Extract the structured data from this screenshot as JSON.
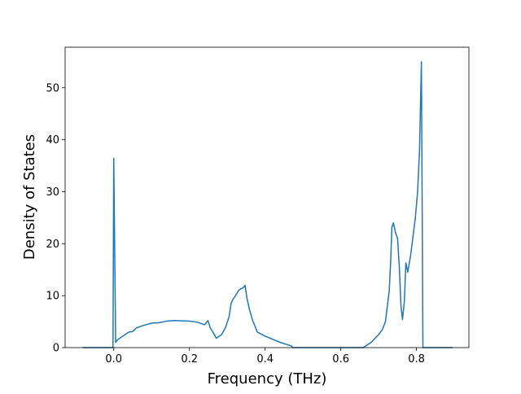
{
  "chart_data": {
    "type": "line",
    "xlabel": "Frequency (THz)",
    "ylabel": "Density of States",
    "x": [
      -0.082,
      -0.002,
      0.0,
      0.005,
      0.01,
      0.02,
      0.03,
      0.04,
      0.05,
      0.06,
      0.08,
      0.1,
      0.12,
      0.14,
      0.16,
      0.2,
      0.22,
      0.24,
      0.249,
      0.255,
      0.262,
      0.271,
      0.285,
      0.295,
      0.305,
      0.31,
      0.315,
      0.322,
      0.33,
      0.335,
      0.342,
      0.347,
      0.352,
      0.358,
      0.368,
      0.374,
      0.379,
      0.4,
      0.44,
      0.47,
      0.472,
      0.659,
      0.68,
      0.7,
      0.71,
      0.718,
      0.723,
      0.728,
      0.732,
      0.735,
      0.739,
      0.745,
      0.75,
      0.755,
      0.759,
      0.763,
      0.768,
      0.772,
      0.777,
      0.785,
      0.797,
      0.803,
      0.808,
      0.813,
      0.817,
      0.895
    ],
    "series": [
      {
        "name": "DOS",
        "color": "#1f77b4",
        "values": [
          0,
          0,
          36.4,
          1,
          1.5,
          2,
          2.5,
          3,
          3.1,
          3.8,
          4.3,
          4.7,
          4.8,
          5.1,
          5.2,
          5.1,
          4.9,
          4.4,
          5.2,
          3.8,
          3,
          1.8,
          2.5,
          3.8,
          6,
          8.5,
          9.3,
          10,
          11,
          11.3,
          11.5,
          12,
          9.5,
          7.5,
          5,
          4,
          3,
          2.2,
          1,
          0.3,
          0,
          0,
          1,
          2.5,
          3.5,
          5,
          8,
          11,
          17,
          23.2,
          24,
          22,
          21,
          15,
          8,
          5.4,
          9,
          16.3,
          14.5,
          18,
          25,
          30,
          38,
          55,
          0,
          0
        ]
      }
    ],
    "xlim": [
      -0.1285,
      0.9385
    ],
    "ylim": [
      0,
      57.8
    ],
    "xticks": [
      {
        "value": 0,
        "label": "0.0"
      },
      0.2,
      0.4,
      0.6,
      0.8
    ],
    "yticks": [
      0,
      10,
      20,
      30,
      40,
      50
    ]
  }
}
